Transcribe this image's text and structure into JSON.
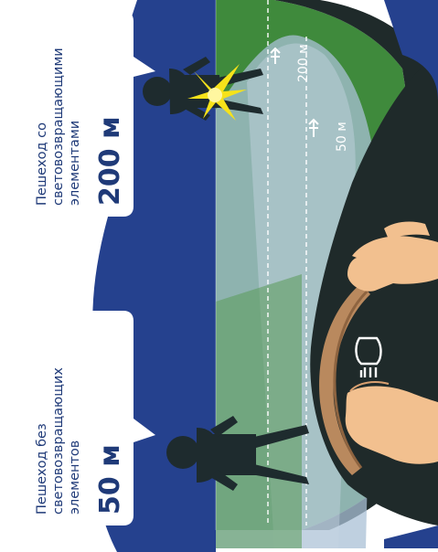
{
  "callouts": {
    "no_reflector": {
      "label_lines": [
        "Пешеход без",
        "световозвращающих",
        "элементов"
      ],
      "distance": "50 м"
    },
    "with_reflector": {
      "label_lines": [
        "Пешеход со",
        "световозвращающими",
        "элементами"
      ],
      "distance": "200 м"
    }
  },
  "road_markers": {
    "far": "200 м",
    "near": "50 м"
  },
  "icons": {
    "headlight": "low-beam-headlight-icon",
    "reflector": "reflector-flash-icon",
    "arrow": "arrow-up-icon"
  },
  "colors": {
    "sky": "#25418e",
    "field": "#3f8a3c",
    "beam": "#a9c0d6",
    "dashboard": "#1f2a2a",
    "callout_text": "#1f3a78",
    "reflector_flash": "#f6e21a",
    "steering_wheel": "#b9895e",
    "hands": "#f2c08f"
  }
}
